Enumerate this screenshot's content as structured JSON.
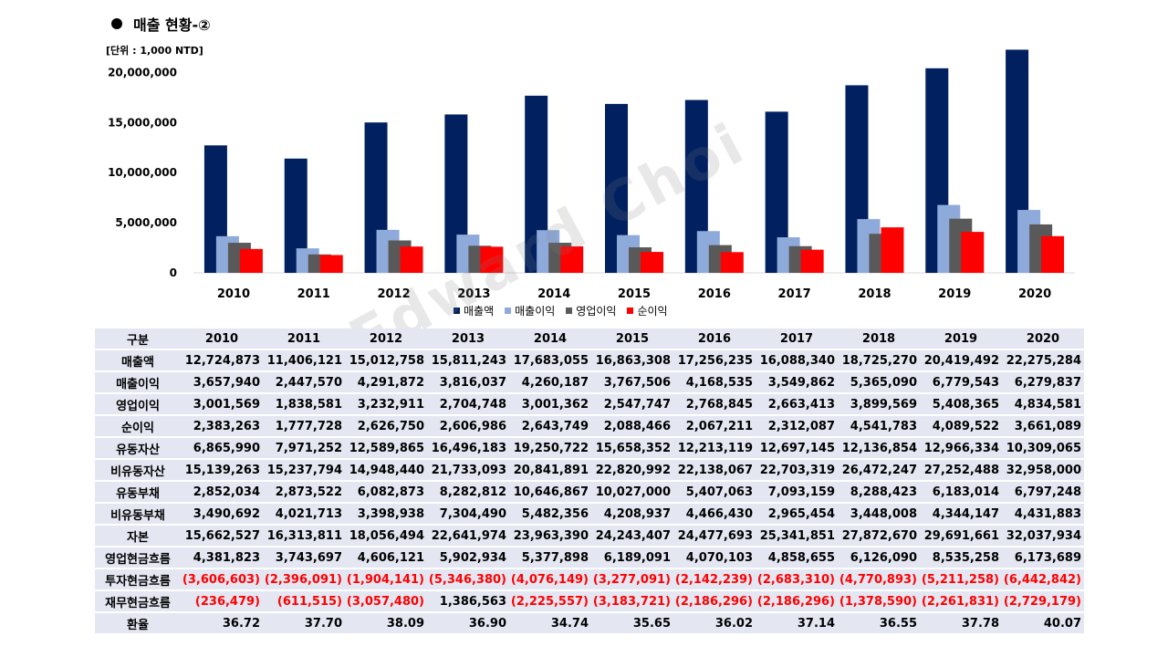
{
  "title": "매출 현황-②",
  "unit": "[단위 : 1,000 NTD]",
  "watermark": "Edward Choi",
  "colors": {
    "매출액": "#002060",
    "매출이익": "#8eaadb",
    "영업이익": "#595959",
    "순이익": "#ff0000",
    "table_bg": "#e4e7f2",
    "negative": "#ff0000"
  },
  "chart_data": {
    "type": "bar",
    "categories": [
      "2010",
      "2011",
      "2012",
      "2013",
      "2014",
      "2015",
      "2016",
      "2017",
      "2018",
      "2019",
      "2020"
    ],
    "ylim": [
      0,
      22500000
    ],
    "yticks": [
      0,
      5000000,
      10000000,
      15000000,
      20000000
    ],
    "ytick_labels": [
      "0",
      "5,000,000",
      "10,000,000",
      "15,000,000",
      "20,000,000"
    ],
    "legend_position": "bottom",
    "grid": false,
    "series": [
      {
        "name": "매출액",
        "values": [
          12724873,
          11406121,
          15012758,
          15811243,
          17683055,
          16863308,
          17256235,
          16088340,
          18725270,
          20419492,
          22275284
        ]
      },
      {
        "name": "매출이익",
        "values": [
          3657940,
          2447570,
          4291872,
          3816037,
          4260187,
          3767506,
          4168535,
          3549862,
          5365090,
          6779543,
          6279837
        ]
      },
      {
        "name": "영업이익",
        "values": [
          3001569,
          1838581,
          3232911,
          2704748,
          3001362,
          2547747,
          2768845,
          2663413,
          3899569,
          5408365,
          4834581
        ]
      },
      {
        "name": "순이익",
        "values": [
          2383263,
          1777728,
          2626750,
          2606986,
          2643749,
          2088466,
          2067211,
          2312087,
          4541783,
          4089522,
          3661089
        ]
      }
    ]
  },
  "table": {
    "header": [
      "구분",
      "2010",
      "2011",
      "2012",
      "2013",
      "2014",
      "2015",
      "2016",
      "2017",
      "2018",
      "2019",
      "2020"
    ],
    "rows": [
      {
        "label": "매출액",
        "values": [
          "12,724,873",
          "11,406,121",
          "15,012,758",
          "15,811,243",
          "17,683,055",
          "16,863,308",
          "17,256,235",
          "16,088,340",
          "18,725,270",
          "20,419,492",
          "22,275,284"
        ]
      },
      {
        "label": "매출이익",
        "values": [
          "3,657,940",
          "2,447,570",
          "4,291,872",
          "3,816,037",
          "4,260,187",
          "3,767,506",
          "4,168,535",
          "3,549,862",
          "5,365,090",
          "6,779,543",
          "6,279,837"
        ]
      },
      {
        "label": "영업이익",
        "values": [
          "3,001,569",
          "1,838,581",
          "3,232,911",
          "2,704,748",
          "3,001,362",
          "2,547,747",
          "2,768,845",
          "2,663,413",
          "3,899,569",
          "5,408,365",
          "4,834,581"
        ]
      },
      {
        "label": "순이익",
        "values": [
          "2,383,263",
          "1,777,728",
          "2,626,750",
          "2,606,986",
          "2,643,749",
          "2,088,466",
          "2,067,211",
          "2,312,087",
          "4,541,783",
          "4,089,522",
          "3,661,089"
        ]
      },
      {
        "label": "유동자산",
        "values": [
          "6,865,990",
          "7,971,252",
          "12,589,865",
          "16,496,183",
          "19,250,722",
          "15,658,352",
          "12,213,119",
          "12,697,145",
          "12,136,854",
          "12,966,334",
          "10,309,065"
        ]
      },
      {
        "label": "비유동자산",
        "values": [
          "15,139,263",
          "15,237,794",
          "14,948,440",
          "21,733,093",
          "20,841,891",
          "22,820,992",
          "22,138,067",
          "22,703,319",
          "26,472,247",
          "27,252,488",
          "32,958,000"
        ]
      },
      {
        "label": "유동부채",
        "values": [
          "2,852,034",
          "2,873,522",
          "6,082,873",
          "8,282,812",
          "10,646,867",
          "10,027,000",
          "5,407,063",
          "7,093,159",
          "8,288,423",
          "6,183,014",
          "6,797,248"
        ]
      },
      {
        "label": "비유동부채",
        "values": [
          "3,490,692",
          "4,021,713",
          "3,398,938",
          "7,304,490",
          "5,482,356",
          "4,208,937",
          "4,466,430",
          "2,965,454",
          "3,448,008",
          "4,344,147",
          "4,431,883"
        ]
      },
      {
        "label": "자본",
        "values": [
          "15,662,527",
          "16,313,811",
          "18,056,494",
          "22,641,974",
          "23,963,390",
          "24,243,407",
          "24,477,693",
          "25,341,851",
          "27,872,670",
          "29,691,661",
          "32,037,934"
        ]
      },
      {
        "label": "영업현금흐름",
        "values": [
          "4,381,823",
          "3,743,697",
          "4,606,121",
          "5,902,934",
          "5,377,898",
          "6,189,091",
          "4,070,103",
          "4,858,655",
          "6,126,090",
          "8,535,258",
          "6,173,689"
        ]
      },
      {
        "label": "투자현금흐름",
        "values": [
          "(3,606,603)",
          "(2,396,091)",
          "(1,904,141)",
          "(5,346,380)",
          "(4,076,149)",
          "(3,277,091)",
          "(2,142,239)",
          "(2,683,310)",
          "(4,770,893)",
          "(5,211,258)",
          "(6,442,842)"
        ]
      },
      {
        "label": "재무현금흐름",
        "values": [
          "(236,479)",
          "(611,515)",
          "(3,057,480)",
          "1,386,563",
          "(2,225,557)",
          "(3,183,721)",
          "(2,186,296)",
          "(2,186,296)",
          "(1,378,590)",
          "(2,261,831)",
          "(2,729,179)"
        ]
      },
      {
        "label": "환율",
        "values": [
          "36.72",
          "37.70",
          "38.09",
          "36.90",
          "34.74",
          "35.65",
          "36.02",
          "37.14",
          "36.55",
          "37.78",
          "40.07"
        ]
      }
    ]
  }
}
